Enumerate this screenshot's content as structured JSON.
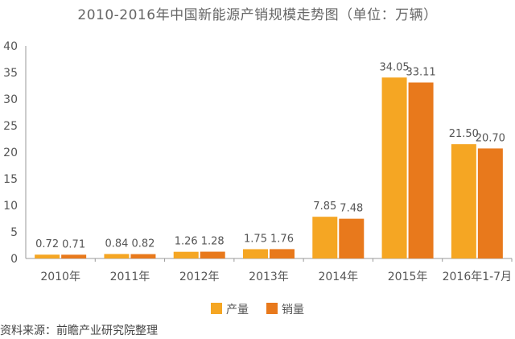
{
  "chart_data": {
    "type": "bar",
    "title": "2010-2016年中国新能源产销规模走势图（单位：万辆）",
    "categories": [
      "2010年",
      "2011年",
      "2012年",
      "2013年",
      "2014年",
      "2015年",
      "2016年1-7月"
    ],
    "series": [
      {
        "name": "产量",
        "color": "#F5A623",
        "values": [
          0.72,
          0.84,
          1.26,
          1.75,
          7.85,
          34.05,
          21.5
        ],
        "labels": [
          "0.72",
          "0.84",
          "1.26",
          "1.75",
          "7.85",
          "34.05",
          "21.50"
        ]
      },
      {
        "name": "销量",
        "color": "#E8791C",
        "values": [
          0.71,
          0.82,
          1.28,
          1.76,
          7.48,
          33.11,
          20.7
        ],
        "labels": [
          "0.71",
          "0.82",
          "1.28",
          "1.76",
          "7.48",
          "33.11",
          "20.70"
        ]
      }
    ],
    "ylim": [
      0,
      40
    ],
    "yticks": [
      "0",
      "5",
      "10",
      "15",
      "20",
      "25",
      "30",
      "35",
      "40"
    ],
    "xlabel": "",
    "ylabel": "",
    "grid": false,
    "legend_position": "bottom"
  },
  "source_note": "资料来源：前瞻产业研究院整理"
}
